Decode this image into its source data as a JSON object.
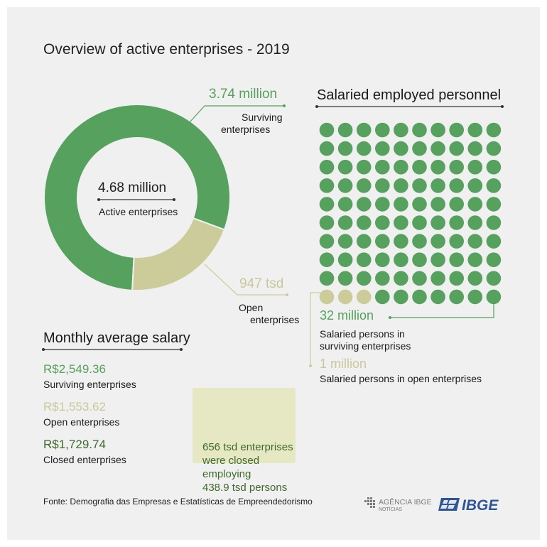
{
  "title": "Overview of active enterprises - 2019",
  "colors": {
    "green": "#55a15d",
    "beige": "#cccc9a",
    "dark_green": "#3f6b2a",
    "note_bg": "#e6e8c3",
    "ibge_blue": "#2f5597"
  },
  "donut": {
    "center_value": "4.68 million",
    "center_label": "Active enterprises",
    "surviving_value": "3.74 million",
    "surviving_label_1": "Surviving",
    "surviving_label_2": "enterprises",
    "open_value": "947 tsd",
    "open_label_1": "Open",
    "open_label_2": "enterprises"
  },
  "personnel": {
    "heading": "Salaried employed personnel",
    "surviving_value": "32 million",
    "surviving_label_1": "Salaried persons in",
    "surviving_label_2": "surviving enterprises",
    "open_value": "1 million",
    "open_label": "Salaried persons in open enterprises"
  },
  "salary": {
    "heading": "Monthly average salary",
    "items": [
      {
        "value": "R$2,549.36",
        "label": "Surviving enterprises"
      },
      {
        "value": "R$1,553.62",
        "label": "Open enterprises"
      },
      {
        "value": "R$1,729.74",
        "label": "Closed enterprises"
      }
    ]
  },
  "note": {
    "line1": "656 tsd enterprises",
    "line2": "were closed",
    "line3": "employing",
    "line4": "438.9 tsd persons"
  },
  "source": "Fonte: Demografia das Empresas e Estatísticas de Empreendedorismo",
  "logos": {
    "agencia_main": "AGÊNCIA IBGE",
    "agencia_sub": "NOTÍCIAS",
    "ibge": "IBGE"
  },
  "chart_data": [
    {
      "type": "pie",
      "title": "",
      "categories": [
        "Surviving enterprises",
        "Open enterprises"
      ],
      "values": [
        3.74,
        0.947
      ],
      "units": "million"
    },
    {
      "type": "waffle",
      "title": "Salaried employed personnel",
      "categories": [
        "Salaried persons in surviving enterprises",
        "Salaried persons in open enterprises"
      ],
      "values": [
        32,
        1
      ],
      "units": "million",
      "dots": [
        97,
        3
      ]
    }
  ]
}
